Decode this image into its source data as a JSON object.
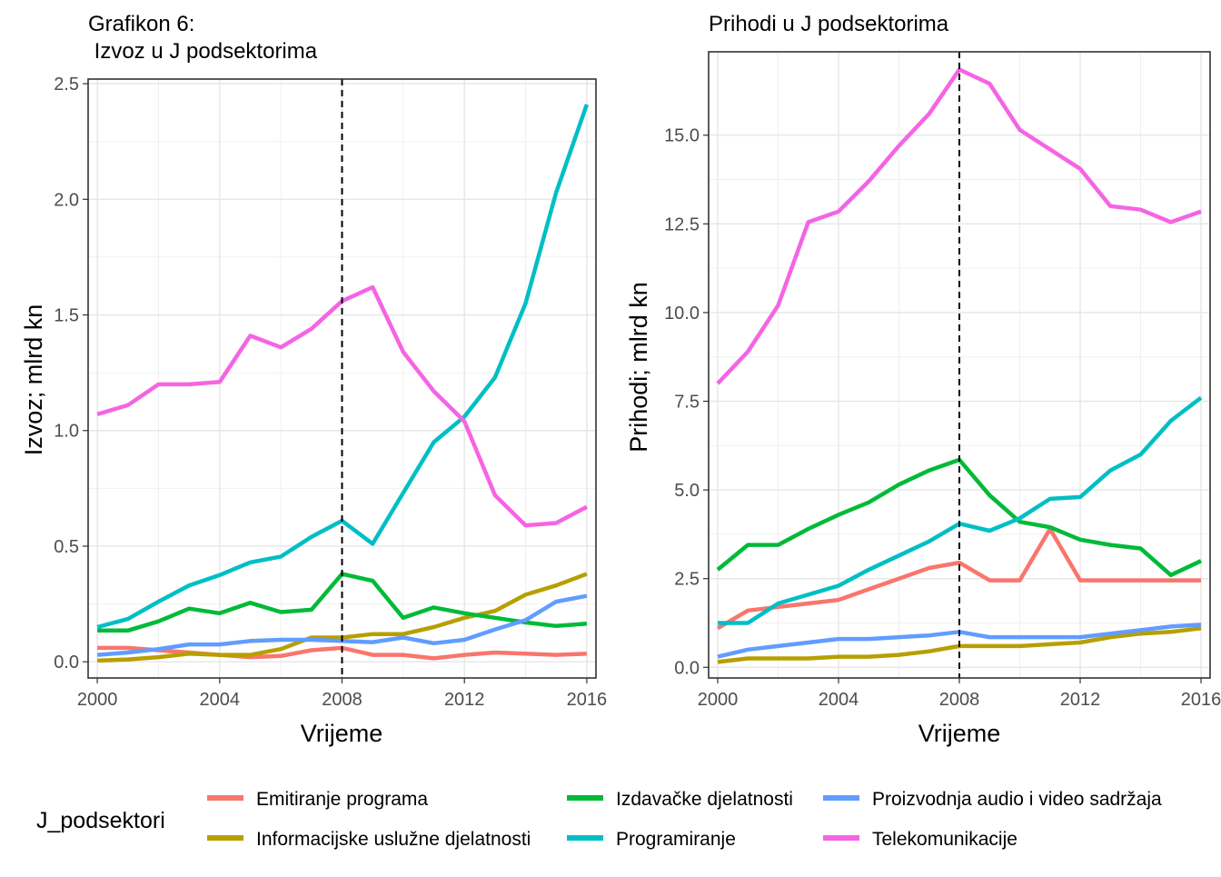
{
  "chart_data": [
    {
      "type": "line",
      "title": "Grafikon 6:",
      "subtitle": " Izvoz u J podsektorima",
      "xlabel": "Vrijeme",
      "ylabel": "Izvoz; mlrd kn",
      "xlim": [
        1999.7,
        2016.3
      ],
      "ylim": [
        -0.07,
        2.52
      ],
      "xticks": [
        2000,
        2004,
        2008,
        2012,
        2016
      ],
      "xtick_labels": [
        "2000",
        "2004",
        "2008",
        "2012",
        "2016"
      ],
      "yticks": [
        0,
        0.5,
        1,
        1.5,
        2,
        2.5
      ],
      "ytick_labels": [
        "0.0",
        "0.5",
        "1.0",
        "1.5",
        "2.0",
        "2.5"
      ],
      "vline_x": 2008,
      "grid": true,
      "x": [
        2000,
        2001,
        2002,
        2003,
        2004,
        2005,
        2006,
        2007,
        2008,
        2009,
        2010,
        2011,
        2012,
        2013,
        2014,
        2015,
        2016
      ],
      "series": [
        {
          "name": "Emitiranje programa",
          "color": "#F8766D",
          "values": [
            0.06,
            0.06,
            0.05,
            0.04,
            0.03,
            0.02,
            0.025,
            0.05,
            0.06,
            0.03,
            0.03,
            0.015,
            0.03,
            0.04,
            0.035,
            0.03,
            0.035
          ]
        },
        {
          "name": "Informacijske uslužne djelatnosti",
          "color": "#B79F00",
          "values": [
            0.005,
            0.01,
            0.02,
            0.035,
            0.03,
            0.03,
            0.055,
            0.105,
            0.105,
            0.12,
            0.12,
            0.15,
            0.19,
            0.22,
            0.29,
            0.33,
            0.38
          ]
        },
        {
          "name": "Izdavačke djelatnosti",
          "color": "#00BA38",
          "values": [
            0.135,
            0.135,
            0.175,
            0.23,
            0.21,
            0.255,
            0.215,
            0.225,
            0.38,
            0.35,
            0.19,
            0.235,
            0.21,
            0.19,
            0.17,
            0.155,
            0.165
          ]
        },
        {
          "name": "Programiranje",
          "color": "#00BFC4",
          "values": [
            0.15,
            0.185,
            0.26,
            0.33,
            0.375,
            0.43,
            0.455,
            0.54,
            0.61,
            0.51,
            0.73,
            0.95,
            1.06,
            1.23,
            1.55,
            2.03,
            2.41
          ]
        },
        {
          "name": "Proizvodnja audio i video sadržaja",
          "color": "#619CFF",
          "values": [
            0.03,
            0.04,
            0.055,
            0.075,
            0.075,
            0.09,
            0.095,
            0.095,
            0.09,
            0.085,
            0.105,
            0.08,
            0.095,
            0.14,
            0.18,
            0.26,
            0.285
          ]
        },
        {
          "name": "Telekomunikacije",
          "color": "#F564E3",
          "values": [
            1.07,
            1.11,
            1.2,
            1.2,
            1.21,
            1.41,
            1.36,
            1.44,
            1.56,
            1.62,
            1.34,
            1.17,
            1.04,
            0.72,
            0.59,
            0.6,
            0.67
          ]
        }
      ]
    },
    {
      "type": "line",
      "title": "Prihodi u J podsektorima",
      "xlabel": "Vrijeme",
      "ylabel": "Prihodi; mlrd kn",
      "xlim": [
        1999.7,
        2016.3
      ],
      "ylim": [
        -0.3,
        17.35
      ],
      "xticks": [
        2000,
        2004,
        2008,
        2012,
        2016
      ],
      "xtick_labels": [
        "2000",
        "2004",
        "2008",
        "2012",
        "2016"
      ],
      "yticks": [
        0,
        2.5,
        5,
        7.5,
        10,
        12.5,
        15
      ],
      "ytick_labels": [
        "0.0",
        "2.5",
        "5.0",
        "7.5",
        "10.0",
        "12.5",
        "15.0"
      ],
      "vline_x": 2008,
      "grid": true,
      "x": [
        2000,
        2001,
        2002,
        2003,
        2004,
        2005,
        2006,
        2007,
        2008,
        2009,
        2010,
        2011,
        2012,
        2013,
        2014,
        2015,
        2016
      ],
      "series": [
        {
          "name": "Emitiranje programa",
          "color": "#F8766D",
          "values": [
            1.1,
            1.6,
            1.7,
            1.8,
            1.9,
            2.2,
            2.5,
            2.8,
            2.95,
            2.45,
            2.45,
            3.9,
            2.45,
            2.45,
            2.45,
            2.45,
            2.45
          ]
        },
        {
          "name": "Informacijske uslužne djelatnosti",
          "color": "#B79F00",
          "values": [
            0.15,
            0.25,
            0.25,
            0.25,
            0.3,
            0.3,
            0.35,
            0.45,
            0.6,
            0.6,
            0.6,
            0.65,
            0.7,
            0.85,
            0.95,
            1.0,
            1.1
          ]
        },
        {
          "name": "Izdavačke djelatnosti",
          "color": "#00BA38",
          "values": [
            2.75,
            3.45,
            3.45,
            3.9,
            4.3,
            4.65,
            5.15,
            5.55,
            5.85,
            4.85,
            4.1,
            3.95,
            3.6,
            3.45,
            3.35,
            2.6,
            3.0
          ]
        },
        {
          "name": "Programiranje",
          "color": "#00BFC4",
          "values": [
            1.25,
            1.25,
            1.8,
            2.05,
            2.3,
            2.75,
            3.15,
            3.55,
            4.05,
            3.85,
            4.2,
            4.75,
            4.8,
            5.55,
            6.0,
            6.95,
            7.6
          ]
        },
        {
          "name": "Proizvodnja audio i video sadržaja",
          "color": "#619CFF",
          "values": [
            0.3,
            0.5,
            0.6,
            0.7,
            0.8,
            0.8,
            0.85,
            0.9,
            1.0,
            0.85,
            0.85,
            0.85,
            0.85,
            0.95,
            1.05,
            1.15,
            1.2
          ]
        },
        {
          "name": "Telekomunikacije",
          "color": "#F564E3",
          "values": [
            8.0,
            8.9,
            10.2,
            12.55,
            12.85,
            13.7,
            14.7,
            15.6,
            16.85,
            16.45,
            15.15,
            14.6,
            14.05,
            13.0,
            12.9,
            12.55,
            12.85
          ]
        }
      ]
    }
  ],
  "legend": {
    "title": "J_podsektori",
    "items": [
      {
        "label": "Emitiranje programa",
        "color": "#F8766D"
      },
      {
        "label": "Informacijske uslužne djelatnosti",
        "color": "#B79F00"
      },
      {
        "label": "Izdavačke djelatnosti",
        "color": "#00BA38"
      },
      {
        "label": "Programiranje",
        "color": "#00BFC4"
      },
      {
        "label": "Proizvodnja audio i video sadržaja",
        "color": "#619CFF"
      },
      {
        "label": "Telekomunikacije",
        "color": "#F564E3"
      }
    ]
  }
}
